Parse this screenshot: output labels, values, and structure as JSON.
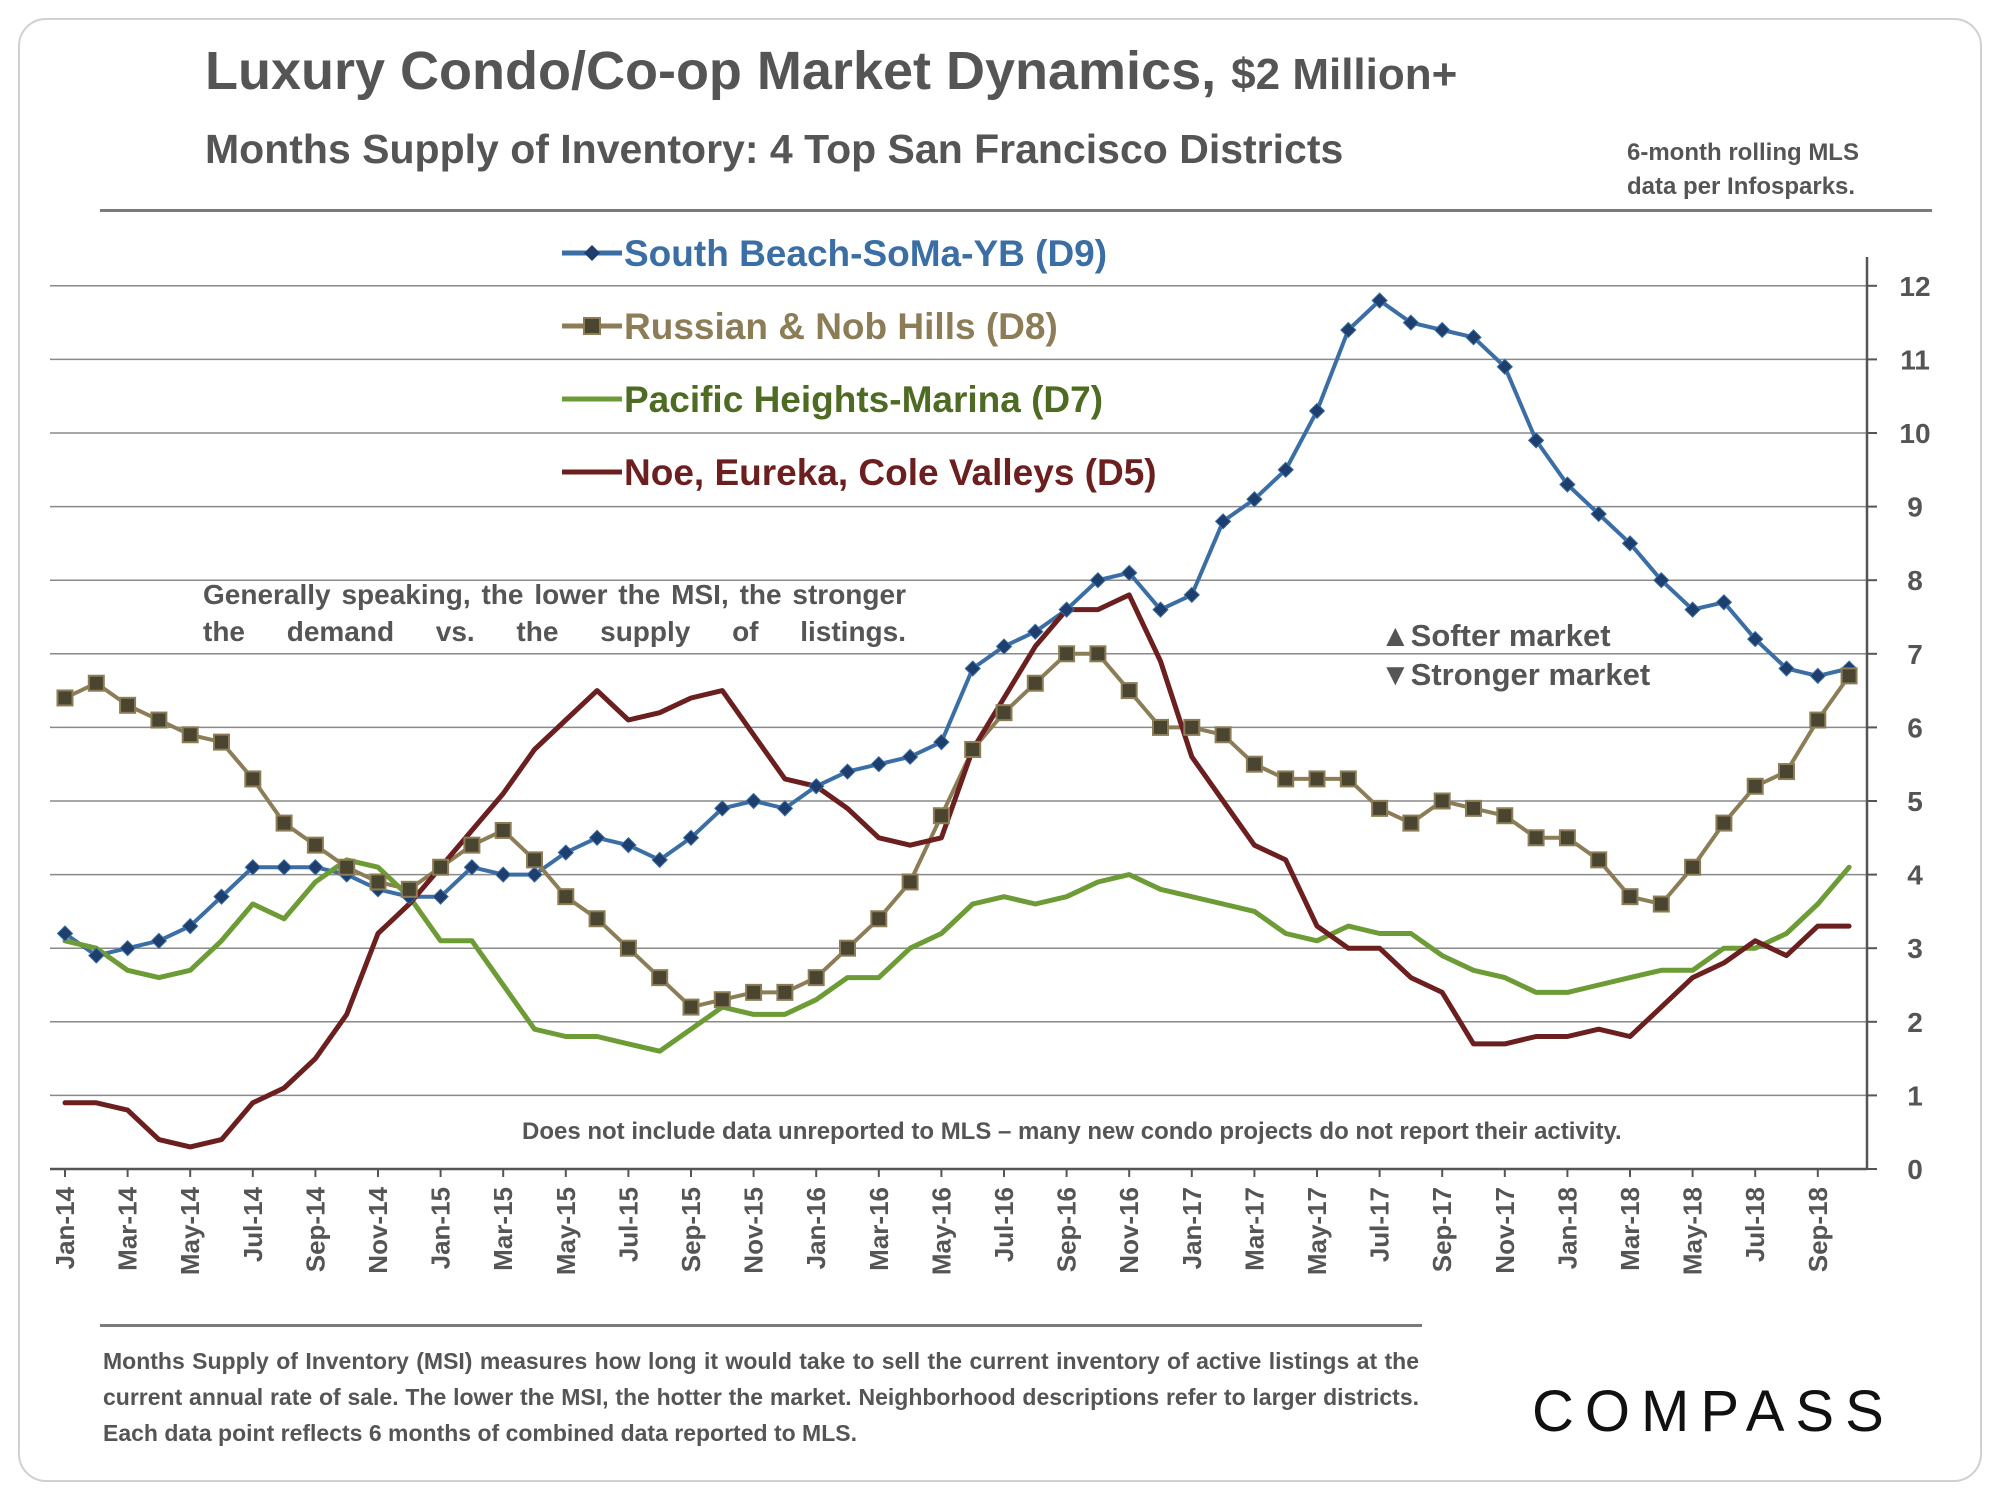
{
  "title_main": "Luxury Condo/Co-op Market Dynamics,",
  "title_suffix": "$2 Million+",
  "subtitle": "Months Supply of Inventory: 4 Top San Francisco Districts",
  "note_top_line1": "6-month rolling MLS",
  "note_top_line2": "data per Infosparks.",
  "annotation_general": "Generally speaking, the lower the MSI, the stronger the demand vs. the supply of listings.",
  "annotation_softer": "▲Softer market",
  "annotation_stronger": "▼Stronger market",
  "annotation_mls": "Does not include data unreported to MLS – many new condo projects do not report their activity.",
  "footnote": "Months Supply of Inventory (MSI) measures how long it would take to sell the current inventory of active listings at the current annual rate of sale. The lower the MSI, the hotter the market. Neighborhood descriptions refer to larger districts. Each data point reflects 6 months of combined data  reported to MLS.",
  "logo": "COMPASS",
  "colors": {
    "d9": "#3a6ea5",
    "d9_marker": "#1e3f6e",
    "d8": "#8c7d57",
    "d8_marker": "#4a4530",
    "d7": "#6d9b35",
    "d5": "#6b1f1f",
    "d7_label": "#4d6b22"
  },
  "chart_data": {
    "type": "line",
    "title": "Months Supply of Inventory: 4 Top San Francisco Districts",
    "xlabel": "",
    "ylabel": "",
    "ylim": [
      0,
      12
    ],
    "y_ticks": [
      0,
      1,
      2,
      3,
      4,
      5,
      6,
      7,
      8,
      9,
      10,
      11,
      12
    ],
    "y_axis_side": "right",
    "x_tick_labels": [
      "Jan-14",
      "Mar-14",
      "May-14",
      "Jul-14",
      "Sep-14",
      "Nov-14",
      "Jan-15",
      "Mar-15",
      "May-15",
      "Jul-15",
      "Sep-15",
      "Nov-15",
      "Jan-16",
      "Mar-16",
      "May-16",
      "Jul-16",
      "Sep-16",
      "Nov-16",
      "Jan-17",
      "Mar-17",
      "May-17",
      "Jul-17",
      "Sep-17",
      "Nov-17",
      "Jan-18",
      "Mar-18",
      "May-18",
      "Jul-18",
      "Sep-18"
    ],
    "categories": [
      "Jan-14",
      "Feb-14",
      "Mar-14",
      "Apr-14",
      "May-14",
      "Jun-14",
      "Jul-14",
      "Aug-14",
      "Sep-14",
      "Oct-14",
      "Nov-14",
      "Dec-14",
      "Jan-15",
      "Feb-15",
      "Mar-15",
      "Apr-15",
      "May-15",
      "Jun-15",
      "Jul-15",
      "Aug-15",
      "Sep-15",
      "Oct-15",
      "Nov-15",
      "Dec-15",
      "Jan-16",
      "Feb-16",
      "Mar-16",
      "Apr-16",
      "May-16",
      "Jun-16",
      "Jul-16",
      "Aug-16",
      "Sep-16",
      "Oct-16",
      "Nov-16",
      "Dec-16",
      "Jan-17",
      "Feb-17",
      "Mar-17",
      "Apr-17",
      "May-17",
      "Jun-17",
      "Jul-17",
      "Aug-17",
      "Sep-17",
      "Oct-17",
      "Nov-17",
      "Dec-17",
      "Jan-18",
      "Feb-18",
      "Mar-18",
      "Apr-18",
      "May-18",
      "Jun-18",
      "Jul-18",
      "Aug-18",
      "Sep-18",
      "Oct-18"
    ],
    "series": [
      {
        "key": "d9",
        "name": "South Beach-SoMa-YB (D9)",
        "marker": "diamond",
        "values": [
          3.2,
          2.9,
          3.0,
          3.1,
          3.3,
          3.7,
          4.1,
          4.1,
          4.1,
          4.0,
          3.8,
          3.7,
          3.7,
          4.1,
          4.0,
          4.0,
          4.3,
          4.5,
          4.4,
          4.2,
          4.5,
          4.9,
          5.0,
          4.9,
          5.2,
          5.4,
          5.5,
          5.6,
          5.8,
          6.8,
          7.1,
          7.3,
          7.6,
          8.0,
          8.1,
          7.6,
          7.8,
          8.8,
          9.1,
          9.5,
          10.3,
          11.4,
          11.8,
          11.5,
          11.4,
          11.3,
          10.9,
          9.9,
          9.3,
          8.9,
          8.5,
          8.0,
          7.6,
          7.7,
          7.2,
          6.8,
          6.7,
          6.8
        ]
      },
      {
        "key": "d8",
        "name": "Russian & Nob Hills (D8)",
        "marker": "square",
        "values": [
          6.4,
          6.6,
          6.3,
          6.1,
          5.9,
          5.8,
          5.3,
          4.7,
          4.4,
          4.1,
          3.9,
          3.8,
          4.1,
          4.4,
          4.6,
          4.2,
          3.7,
          3.4,
          3.0,
          2.6,
          2.2,
          2.3,
          2.4,
          2.4,
          2.6,
          3.0,
          3.4,
          3.9,
          4.8,
          5.7,
          6.2,
          6.6,
          7.0,
          7.0,
          6.5,
          6.0,
          6.0,
          5.9,
          5.5,
          5.3,
          5.3,
          5.3,
          4.9,
          4.7,
          5.0,
          4.9,
          4.8,
          4.5,
          4.5,
          4.2,
          3.7,
          3.6,
          4.1,
          4.7,
          5.2,
          5.4,
          6.1,
          6.7
        ]
      },
      {
        "key": "d7",
        "name": "Pacific Heights-Marina (D7)",
        "marker": "none",
        "values": [
          3.1,
          3.0,
          2.7,
          2.6,
          2.7,
          3.1,
          3.6,
          3.4,
          3.9,
          4.2,
          4.1,
          3.7,
          3.1,
          3.1,
          2.5,
          1.9,
          1.8,
          1.8,
          1.7,
          1.6,
          1.9,
          2.2,
          2.1,
          2.1,
          2.3,
          2.6,
          2.6,
          3.0,
          3.2,
          3.6,
          3.7,
          3.6,
          3.7,
          3.9,
          4.0,
          3.8,
          3.7,
          3.6,
          3.5,
          3.2,
          3.1,
          3.3,
          3.2,
          3.2,
          2.9,
          2.7,
          2.6,
          2.4,
          2.4,
          2.5,
          2.6,
          2.7,
          2.7,
          3.0,
          3.0,
          3.2,
          3.6,
          4.1
        ]
      },
      {
        "key": "d5",
        "name": "Noe, Eureka, Cole Valleys (D5)",
        "marker": "none",
        "values": [
          0.9,
          0.9,
          0.8,
          0.4,
          0.3,
          0.4,
          0.9,
          1.1,
          1.5,
          2.1,
          3.2,
          3.6,
          4.1,
          4.6,
          5.1,
          5.7,
          6.1,
          6.5,
          6.1,
          6.2,
          6.4,
          6.5,
          5.9,
          5.3,
          5.2,
          4.9,
          4.5,
          4.4,
          4.5,
          5.7,
          6.4,
          7.1,
          7.6,
          7.6,
          7.8,
          6.9,
          5.6,
          5.0,
          4.4,
          4.2,
          3.3,
          3.0,
          3.0,
          2.6,
          2.4,
          1.7,
          1.7,
          1.8,
          1.8,
          1.9,
          1.8,
          2.2,
          2.6,
          2.8,
          3.1,
          2.9,
          3.3,
          3.3
        ]
      }
    ]
  }
}
